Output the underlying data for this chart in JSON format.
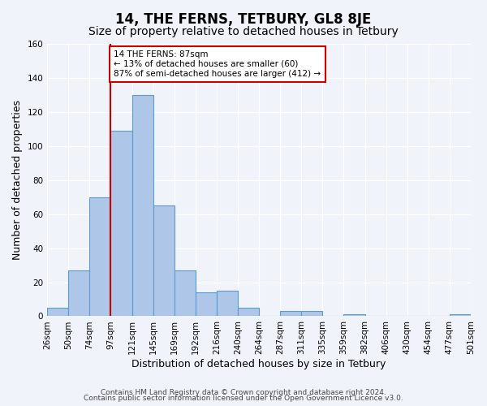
{
  "title": "14, THE FERNS, TETBURY, GL8 8JE",
  "subtitle": "Size of property relative to detached houses in Tetbury",
  "xlabel": "Distribution of detached houses by size in Tetbury",
  "ylabel": "Number of detached properties",
  "bin_labels": [
    "26sqm",
    "50sqm",
    "74sqm",
    "97sqm",
    "121sqm",
    "145sqm",
    "169sqm",
    "192sqm",
    "216sqm",
    "240sqm",
    "264sqm",
    "287sqm",
    "311sqm",
    "335sqm",
    "359sqm",
    "382sqm",
    "406sqm",
    "430sqm",
    "454sqm",
    "477sqm",
    "501sqm"
  ],
  "bin_values": [
    5,
    27,
    70,
    109,
    130,
    65,
    27,
    14,
    15,
    5,
    0,
    3,
    3,
    0,
    1,
    0,
    0,
    0,
    0,
    1
  ],
  "bar_color": "#aec6e8",
  "bar_edge_color": "#5a9bd4",
  "vline_x": 3,
  "vline_color": "#cc0000",
  "annotation_text": "14 THE FERNS: 87sqm\n← 13% of detached houses are smaller (60)\n87% of semi-detached houses are larger (412) →",
  "annotation_box_color": "#ffffff",
  "annotation_box_edge": "#cc0000",
  "ylim": [
    0,
    160
  ],
  "yticks": [
    0,
    20,
    40,
    60,
    80,
    100,
    120,
    140,
    160
  ],
  "background_color": "#f0f4fa",
  "plot_background": "#f0f4fa",
  "footer_line1": "Contains HM Land Registry data © Crown copyright and database right 2024.",
  "footer_line2": "Contains public sector information licensed under the Open Government Licence v3.0.",
  "title_fontsize": 12,
  "subtitle_fontsize": 10,
  "xlabel_fontsize": 9,
  "ylabel_fontsize": 9,
  "tick_fontsize": 7.5,
  "footer_fontsize": 6.5
}
